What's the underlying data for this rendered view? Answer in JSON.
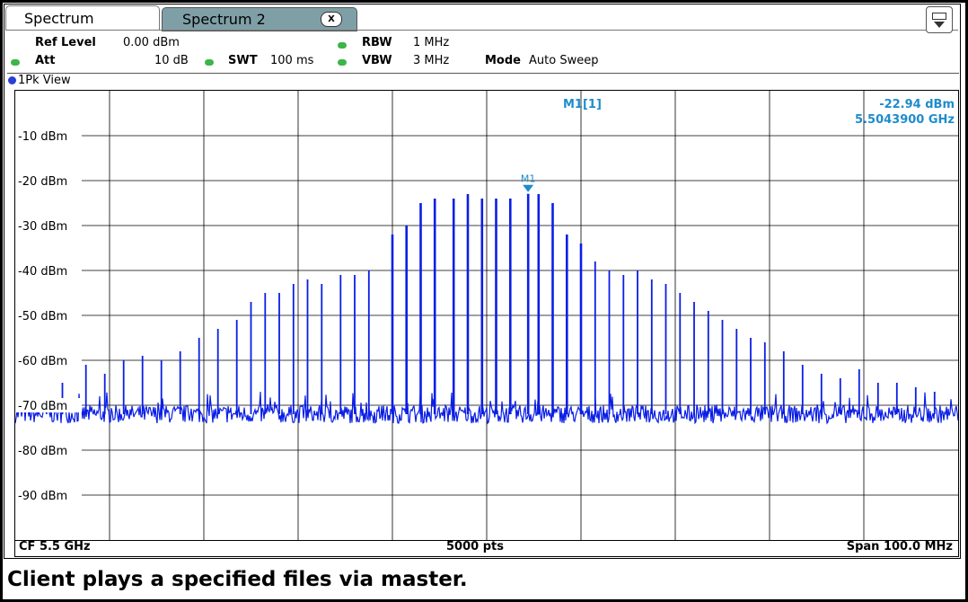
{
  "tabs": {
    "tab1_label": "Spectrum",
    "tab2_label": "Spectrum 2",
    "close_glyph": "X"
  },
  "settings": {
    "ref_level_label": "Ref Level",
    "ref_level_value": "0.00 dBm",
    "att_label": "Att",
    "att_value": "10 dB",
    "swt_label": "SWT",
    "swt_value": "100 ms",
    "rbw_label": "RBW",
    "rbw_value": "1 MHz",
    "vbw_label": "VBW",
    "vbw_value": "3 MHz",
    "mode_label": "Mode",
    "mode_value": "Auto Sweep"
  },
  "view": {
    "label": "1Pk View"
  },
  "marker": {
    "label": "M1[1]",
    "level": "-22.94 dBm",
    "freq": "5.5043900 GHz",
    "tag": "M1",
    "x": 5504.39,
    "y": -22.94
  },
  "footer": {
    "cf": "CF 5.5 GHz",
    "pts": "5000 pts",
    "span": "Span 100.0 MHz"
  },
  "caption": "Client plays a specified files via master.",
  "colors": {
    "trace": "#0a1ee6",
    "marker": "#1e8ccc",
    "tab2_bg": "#7f9fa6"
  },
  "chart_data": {
    "type": "line",
    "title": "",
    "xlabel": "",
    "ylabel": "",
    "xlim": [
      5450,
      5550
    ],
    "ylim": [
      -100,
      0
    ],
    "yticks": [
      {
        "v": -10,
        "label": "-10 dBm"
      },
      {
        "v": -20,
        "label": "-20 dBm"
      },
      {
        "v": -30,
        "label": "-30 dBm"
      },
      {
        "v": -40,
        "label": "-40 dBm"
      },
      {
        "v": -50,
        "label": "-50 dBm"
      },
      {
        "v": -60,
        "label": "-60 dBm"
      },
      {
        "v": -70,
        "label": "-70 dBm"
      },
      {
        "v": -80,
        "label": "-80 dBm"
      },
      {
        "v": -90,
        "label": "-90 dBm"
      }
    ],
    "grid": true,
    "noise_floor_dbm": -72,
    "series": [
      {
        "name": "",
        "peaks": [
          {
            "x": 5455.0,
            "y": -65
          },
          {
            "x": 5457.5,
            "y": -61
          },
          {
            "x": 5459.5,
            "y": -63
          },
          {
            "x": 5461.5,
            "y": -60
          },
          {
            "x": 5463.5,
            "y": -59
          },
          {
            "x": 5465.5,
            "y": -60
          },
          {
            "x": 5467.5,
            "y": -58
          },
          {
            "x": 5469.5,
            "y": -55
          },
          {
            "x": 5471.5,
            "y": -53
          },
          {
            "x": 5473.5,
            "y": -51
          },
          {
            "x": 5475.0,
            "y": -47
          },
          {
            "x": 5476.5,
            "y": -45
          },
          {
            "x": 5478.0,
            "y": -45
          },
          {
            "x": 5479.5,
            "y": -43
          },
          {
            "x": 5481.0,
            "y": -42
          },
          {
            "x": 5482.5,
            "y": -43
          },
          {
            "x": 5484.5,
            "y": -41
          },
          {
            "x": 5486.0,
            "y": -41
          },
          {
            "x": 5487.5,
            "y": -40
          },
          {
            "x": 5490.0,
            "y": -32
          },
          {
            "x": 5491.5,
            "y": -30
          },
          {
            "x": 5493.0,
            "y": -25
          },
          {
            "x": 5494.5,
            "y": -24
          },
          {
            "x": 5496.5,
            "y": -24
          },
          {
            "x": 5498.0,
            "y": -23
          },
          {
            "x": 5499.5,
            "y": -24
          },
          {
            "x": 5501.0,
            "y": -24
          },
          {
            "x": 5502.5,
            "y": -24
          },
          {
            "x": 5504.4,
            "y": -22.94
          },
          {
            "x": 5505.5,
            "y": -23
          },
          {
            "x": 5507.0,
            "y": -25
          },
          {
            "x": 5508.5,
            "y": -32
          },
          {
            "x": 5510.0,
            "y": -34
          },
          {
            "x": 5511.5,
            "y": -38
          },
          {
            "x": 5513.0,
            "y": -40
          },
          {
            "x": 5514.5,
            "y": -41
          },
          {
            "x": 5516.0,
            "y": -40
          },
          {
            "x": 5517.5,
            "y": -42
          },
          {
            "x": 5519.0,
            "y": -43
          },
          {
            "x": 5520.5,
            "y": -45
          },
          {
            "x": 5522.0,
            "y": -47
          },
          {
            "x": 5523.5,
            "y": -49
          },
          {
            "x": 5525.0,
            "y": -51
          },
          {
            "x": 5526.5,
            "y": -53
          },
          {
            "x": 5528.0,
            "y": -55
          },
          {
            "x": 5529.5,
            "y": -56
          },
          {
            "x": 5531.5,
            "y": -58
          },
          {
            "x": 5533.5,
            "y": -61
          },
          {
            "x": 5535.5,
            "y": -63
          },
          {
            "x": 5537.5,
            "y": -64
          },
          {
            "x": 5539.5,
            "y": -62
          },
          {
            "x": 5541.5,
            "y": -65
          },
          {
            "x": 5543.5,
            "y": -65
          },
          {
            "x": 5545.5,
            "y": -66
          },
          {
            "x": 5547.5,
            "y": -67
          }
        ]
      }
    ]
  }
}
